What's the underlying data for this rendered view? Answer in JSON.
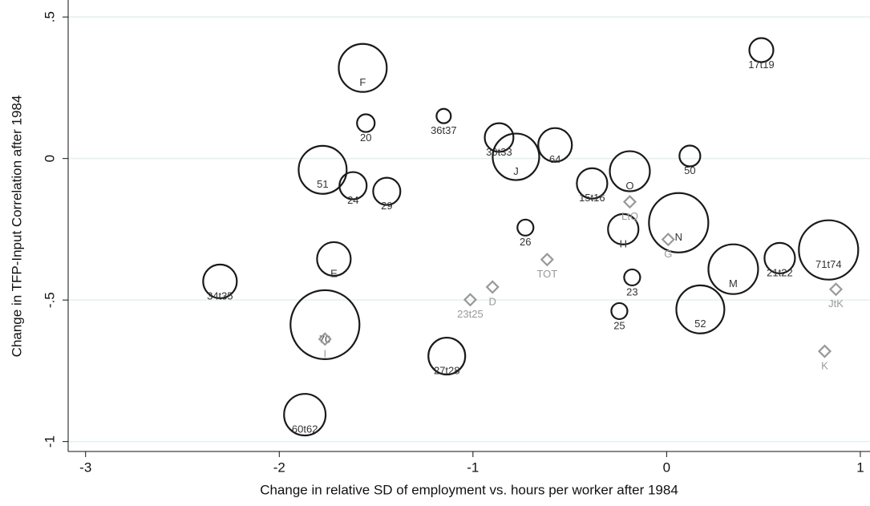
{
  "chart_data": {
    "type": "bubble",
    "x_label": "Change in relative SD of employment vs. hours per worker after 1984",
    "y_label": "Change in TFP-Input Correlation after 1984",
    "xlim": [
      -3.09,
      1.05
    ],
    "ylim": [
      -1.035,
      0.56
    ],
    "xticks": [
      -3,
      -2,
      -1,
      0,
      1
    ],
    "yticks": [
      {
        "value": 0.5,
        "label": ".5"
      },
      0,
      {
        "value": -0.5,
        "label": "-.5"
      },
      -1
    ],
    "grid": true,
    "series": [
      {
        "marker": "circle",
        "color": "#1a1a1a",
        "label_color": "#333333",
        "labels": [
          "F",
          "17t19",
          "20",
          "36t37",
          "30t33",
          "J",
          "64",
          "50",
          "51",
          "24",
          "29",
          "15t16",
          "O",
          "26",
          "H",
          "N",
          "E",
          "34t35",
          "23",
          "M",
          "21t22",
          "71t74",
          "52",
          "25",
          "70",
          "27t28",
          "60t62"
        ],
        "x": [
          -1.569,
          0.489,
          -1.553,
          -1.151,
          -0.865,
          -0.778,
          -0.576,
          0.12,
          -1.776,
          -1.619,
          -1.445,
          -0.385,
          -0.19,
          -0.729,
          -0.224,
          0.062,
          -1.718,
          -2.306,
          -0.178,
          0.344,
          0.584,
          0.836,
          0.174,
          -0.244,
          -1.764,
          -1.135,
          -1.868
        ],
        "values": [
          0.32,
          0.383,
          0.125,
          0.15,
          0.074,
          0.006,
          0.048,
          0.009,
          -0.04,
          -0.096,
          -0.116,
          -0.088,
          -0.045,
          -0.244,
          -0.25,
          -0.227,
          -0.355,
          -0.434,
          -0.42,
          -0.391,
          -0.352,
          -0.323,
          -0.533,
          -0.539,
          -0.587,
          -0.698,
          -0.905
        ],
        "sizes": [
          56,
          14,
          7.6,
          5,
          20,
          52.6,
          27.6,
          10.6,
          56,
          18,
          18,
          22.6,
          39,
          6.25,
          22.6,
          85.6,
          27.6,
          27.6,
          6.25,
          60,
          22.6,
          85.6,
          56,
          6.25,
          115.6,
          33,
          42
        ]
      },
      {
        "marker": "diamond",
        "color": "#999999",
        "label_color": "#999999",
        "labels": [
          "LtQ",
          "G",
          "TOT",
          "D",
          "23t25",
          "JtK",
          "K",
          "I"
        ],
        "x": [
          -0.19,
          0.008,
          -0.617,
          -0.899,
          -1.014,
          0.874,
          0.816,
          -1.764
        ],
        "values": [
          -0.153,
          -0.286,
          -0.357,
          -0.454,
          -0.499,
          -0.462,
          -0.681,
          -0.638
        ]
      }
    ]
  }
}
